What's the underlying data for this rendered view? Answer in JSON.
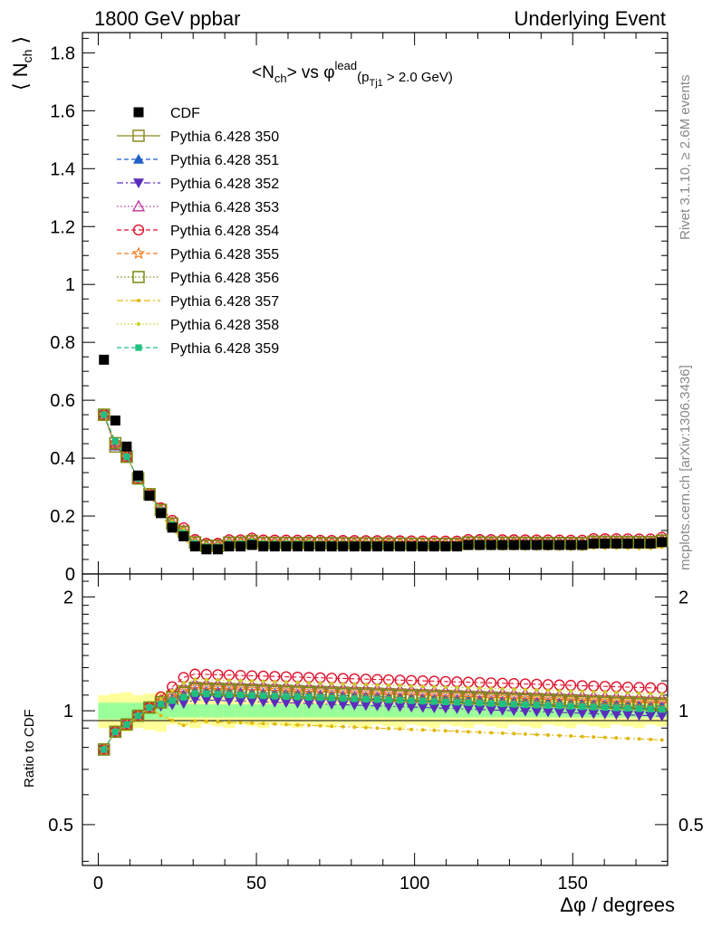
{
  "header": {
    "left": "1800 GeV ppbar",
    "right": "Underlying Event"
  },
  "side": {
    "rivet": "Rivet 3.1.10, ≥ 2.6M events",
    "mcplots": "mcplots.cern.ch [arXiv:1306.3436]"
  },
  "chart_data": [
    {
      "type": "scatter",
      "title": "<N_ch> vs φ^lead (p_Tj1 > 2.0 GeV)",
      "ylabel": "⟨ N_ch ⟩",
      "xlabel": "Δφ / degrees",
      "xlim": [
        -5,
        180
      ],
      "ylim": [
        0,
        1.87
      ],
      "yticks": [
        "0",
        "0.2",
        "0.4",
        "0.6",
        "0.8",
        "1",
        "1.2",
        "1.4",
        "1.6",
        "1.8"
      ],
      "xticks": [
        "0",
        "50",
        "100",
        "150"
      ],
      "legend_position": "top-left",
      "series": [
        {
          "name": "CDF",
          "color": "#000000",
          "marker": "filled-square",
          "line": "none",
          "x": [
            1.8,
            5.4,
            9.0,
            12.6,
            16.2,
            19.8,
            23.4,
            27.0,
            30.6,
            34.2,
            37.8,
            41.4,
            45.0,
            48.6,
            52.2,
            55.8,
            59.4,
            63.0,
            66.6,
            70.2,
            73.8,
            77.4,
            81.0,
            84.6,
            88.2,
            91.8,
            95.4,
            99.0,
            102.6,
            106.2,
            109.8,
            113.4,
            117.0,
            120.6,
            124.2,
            127.8,
            131.4,
            135.0,
            138.6,
            142.2,
            145.8,
            149.4,
            153.0,
            156.6,
            160.2,
            163.8,
            167.4,
            171.0,
            174.6,
            178.2
          ],
          "y": [
            0.74,
            0.53,
            0.44,
            0.34,
            0.27,
            0.21,
            0.16,
            0.13,
            0.095,
            0.085,
            0.085,
            0.095,
            0.095,
            0.1,
            0.095,
            0.095,
            0.095,
            0.095,
            0.095,
            0.095,
            0.095,
            0.095,
            0.095,
            0.095,
            0.095,
            0.095,
            0.095,
            0.095,
            0.095,
            0.095,
            0.095,
            0.095,
            0.1,
            0.1,
            0.1,
            0.1,
            0.1,
            0.1,
            0.1,
            0.1,
            0.1,
            0.1,
            0.1,
            0.105,
            0.105,
            0.105,
            0.105,
            0.105,
            0.105,
            0.11
          ]
        },
        {
          "name": "Pythia 6.428 350",
          "color": "#8b8b22",
          "marker": "open-square",
          "line": "solid"
        },
        {
          "name": "Pythia 6.428 351",
          "color": "#1f5fc7",
          "marker": "filled-triangle-up",
          "line": "dashed"
        },
        {
          "name": "Pythia 6.428 352",
          "color": "#5a2dbd",
          "marker": "filled-triangle-down",
          "line": "dashdot"
        },
        {
          "name": "Pythia 6.428 353",
          "color": "#c0309a",
          "marker": "open-triangle-up",
          "line": "dotted"
        },
        {
          "name": "Pythia 6.428 354",
          "color": "#e0102a",
          "marker": "open-circle",
          "line": "dashed"
        },
        {
          "name": "Pythia 6.428 355",
          "color": "#f07b20",
          "marker": "open-star",
          "line": "dashed"
        },
        {
          "name": "Pythia 6.428 356",
          "color": "#7a8a10",
          "marker": "open-square",
          "line": "dotted"
        },
        {
          "name": "Pythia 6.428 357",
          "color": "#e0b810",
          "marker": "small-dot",
          "line": "dashdot"
        },
        {
          "name": "Pythia 6.428 358",
          "color": "#c8d020",
          "marker": "small-dot",
          "line": "dotted"
        },
        {
          "name": "Pythia 6.428 359",
          "color": "#20c080",
          "marker": "filled-square-small",
          "line": "dashed"
        }
      ]
    },
    {
      "type": "scatter",
      "title": "",
      "ylabel": "Ratio to CDF",
      "xlabel": "Δφ / degrees",
      "xlim": [
        -5,
        180
      ],
      "ylim": [
        0.39,
        2.3
      ],
      "ylog": true,
      "yticks": [
        "0.5",
        "1",
        "2"
      ],
      "xticks": [
        "0",
        "50",
        "100",
        "150"
      ],
      "ratio_start": [
        0.79,
        0.88,
        0.92,
        0.97,
        1.02
      ]
    }
  ]
}
